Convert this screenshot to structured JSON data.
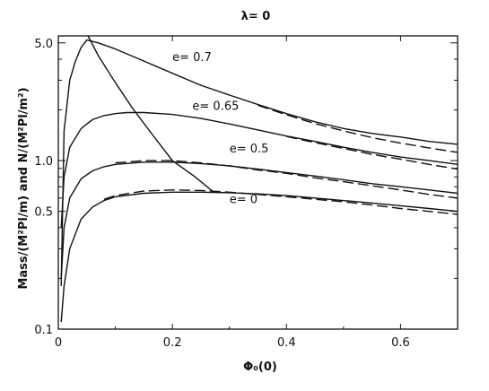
{
  "chart_data": {
    "type": "line",
    "title": "λ= 0",
    "xlabel": "Φ₀(0)",
    "ylabel": "Mass/(M²Pl/m) and N/(M²Pl/m²)",
    "xlim": [
      0,
      0.7
    ],
    "ylim": [
      0.1,
      5.5
    ],
    "yscale": "log",
    "xticks": [
      {
        "value": 0,
        "label": "0"
      },
      {
        "value": 0.2,
        "label": "0.2"
      },
      {
        "value": 0.4,
        "label": "0.4"
      },
      {
        "value": 0.6,
        "label": "0.6"
      }
    ],
    "yticks": [
      {
        "value": 0.1,
        "label": "0.1"
      },
      {
        "value": 0.5,
        "label": "0.5"
      },
      {
        "value": 1.0,
        "label": "1.0"
      },
      {
        "value": 5.0,
        "label": "5.0"
      }
    ],
    "series": [
      {
        "name": "e= 0.7",
        "style": "solid",
        "x": [
          0.005,
          0.01,
          0.02,
          0.03,
          0.04,
          0.05,
          0.07,
          0.1,
          0.15,
          0.2,
          0.25,
          0.3,
          0.35,
          0.4,
          0.45,
          0.5,
          0.55,
          0.6,
          0.65,
          0.7
        ],
        "y": [
          0.18,
          1.5,
          3.0,
          3.9,
          4.7,
          5.2,
          5.0,
          4.6,
          3.9,
          3.3,
          2.8,
          2.45,
          2.15,
          1.9,
          1.7,
          1.55,
          1.45,
          1.38,
          1.3,
          1.25
        ]
      },
      {
        "name": "",
        "style": "dashed",
        "x": [
          0.35,
          0.4,
          0.45,
          0.5,
          0.55,
          0.6,
          0.65,
          0.7
        ],
        "y": [
          2.13,
          1.87,
          1.66,
          1.5,
          1.37,
          1.27,
          1.19,
          1.12
        ]
      },
      {
        "name": "e= 0.65",
        "style": "solid",
        "x": [
          0.005,
          0.01,
          0.02,
          0.04,
          0.06,
          0.08,
          0.1,
          0.12,
          0.15,
          0.2,
          0.25,
          0.3,
          0.35,
          0.4,
          0.45,
          0.5,
          0.55,
          0.6,
          0.65,
          0.7
        ],
        "y": [
          0.4,
          0.8,
          1.2,
          1.55,
          1.75,
          1.85,
          1.9,
          1.93,
          1.93,
          1.88,
          1.78,
          1.65,
          1.52,
          1.4,
          1.3,
          1.2,
          1.12,
          1.05,
          1.0,
          0.95
        ]
      },
      {
        "name": "",
        "style": "dashed",
        "x": [
          0.4,
          0.45,
          0.5,
          0.55,
          0.6,
          0.65,
          0.7
        ],
        "y": [
          1.39,
          1.28,
          1.18,
          1.09,
          1.02,
          0.95,
          0.89
        ]
      },
      {
        "name": "e= 0.5",
        "style": "solid",
        "x": [
          0.005,
          0.01,
          0.02,
          0.04,
          0.06,
          0.08,
          0.1,
          0.15,
          0.2,
          0.25,
          0.3,
          0.35,
          0.4,
          0.45,
          0.5,
          0.55,
          0.6,
          0.65,
          0.7
        ],
        "y": [
          0.2,
          0.4,
          0.6,
          0.78,
          0.87,
          0.92,
          0.95,
          0.98,
          0.98,
          0.96,
          0.93,
          0.89,
          0.85,
          0.81,
          0.77,
          0.73,
          0.7,
          0.67,
          0.64
        ]
      },
      {
        "name": "",
        "style": "dashed",
        "x": [
          0.1,
          0.15,
          0.2,
          0.25,
          0.3,
          0.35,
          0.4,
          0.45,
          0.5,
          0.55,
          0.6,
          0.65,
          0.7
        ],
        "y": [
          0.97,
          1.0,
          1.0,
          0.97,
          0.93,
          0.88,
          0.84,
          0.79,
          0.75,
          0.71,
          0.67,
          0.63,
          0.6
        ]
      },
      {
        "name": "e= 0",
        "style": "solid",
        "x": [
          0.005,
          0.01,
          0.02,
          0.04,
          0.06,
          0.08,
          0.1,
          0.15,
          0.2,
          0.25,
          0.3,
          0.35,
          0.4,
          0.45,
          0.5,
          0.55,
          0.6,
          0.65,
          0.7
        ],
        "y": [
          0.11,
          0.18,
          0.3,
          0.45,
          0.53,
          0.58,
          0.61,
          0.64,
          0.65,
          0.65,
          0.645,
          0.635,
          0.62,
          0.6,
          0.58,
          0.56,
          0.54,
          0.52,
          0.5
        ]
      },
      {
        "name": "",
        "style": "dashed",
        "x": [
          0.08,
          0.1,
          0.15,
          0.2,
          0.25,
          0.3,
          0.35,
          0.4,
          0.45,
          0.5,
          0.55,
          0.6,
          0.65,
          0.7
        ],
        "y": [
          0.59,
          0.62,
          0.66,
          0.67,
          0.665,
          0.65,
          0.63,
          0.61,
          0.59,
          0.57,
          0.545,
          0.52,
          0.5,
          0.48
        ]
      },
      {
        "name": "",
        "style": "solid",
        "x": [
          0.052,
          0.07,
          0.1,
          0.13,
          0.16,
          0.2,
          0.24,
          0.27
        ],
        "y": [
          5.5,
          4.2,
          2.9,
          2.05,
          1.5,
          1.0,
          0.8,
          0.66
        ]
      }
    ],
    "annotations": [
      {
        "text": "e= 0.7",
        "x": 0.2,
        "y": 3.9
      },
      {
        "text": "e= 0.65",
        "x": 0.235,
        "y": 2.0
      },
      {
        "text": "e= 0.5",
        "x": 0.3,
        "y": 1.12
      },
      {
        "text": "e= 0",
        "x": 0.3,
        "y": 0.56
      }
    ]
  }
}
